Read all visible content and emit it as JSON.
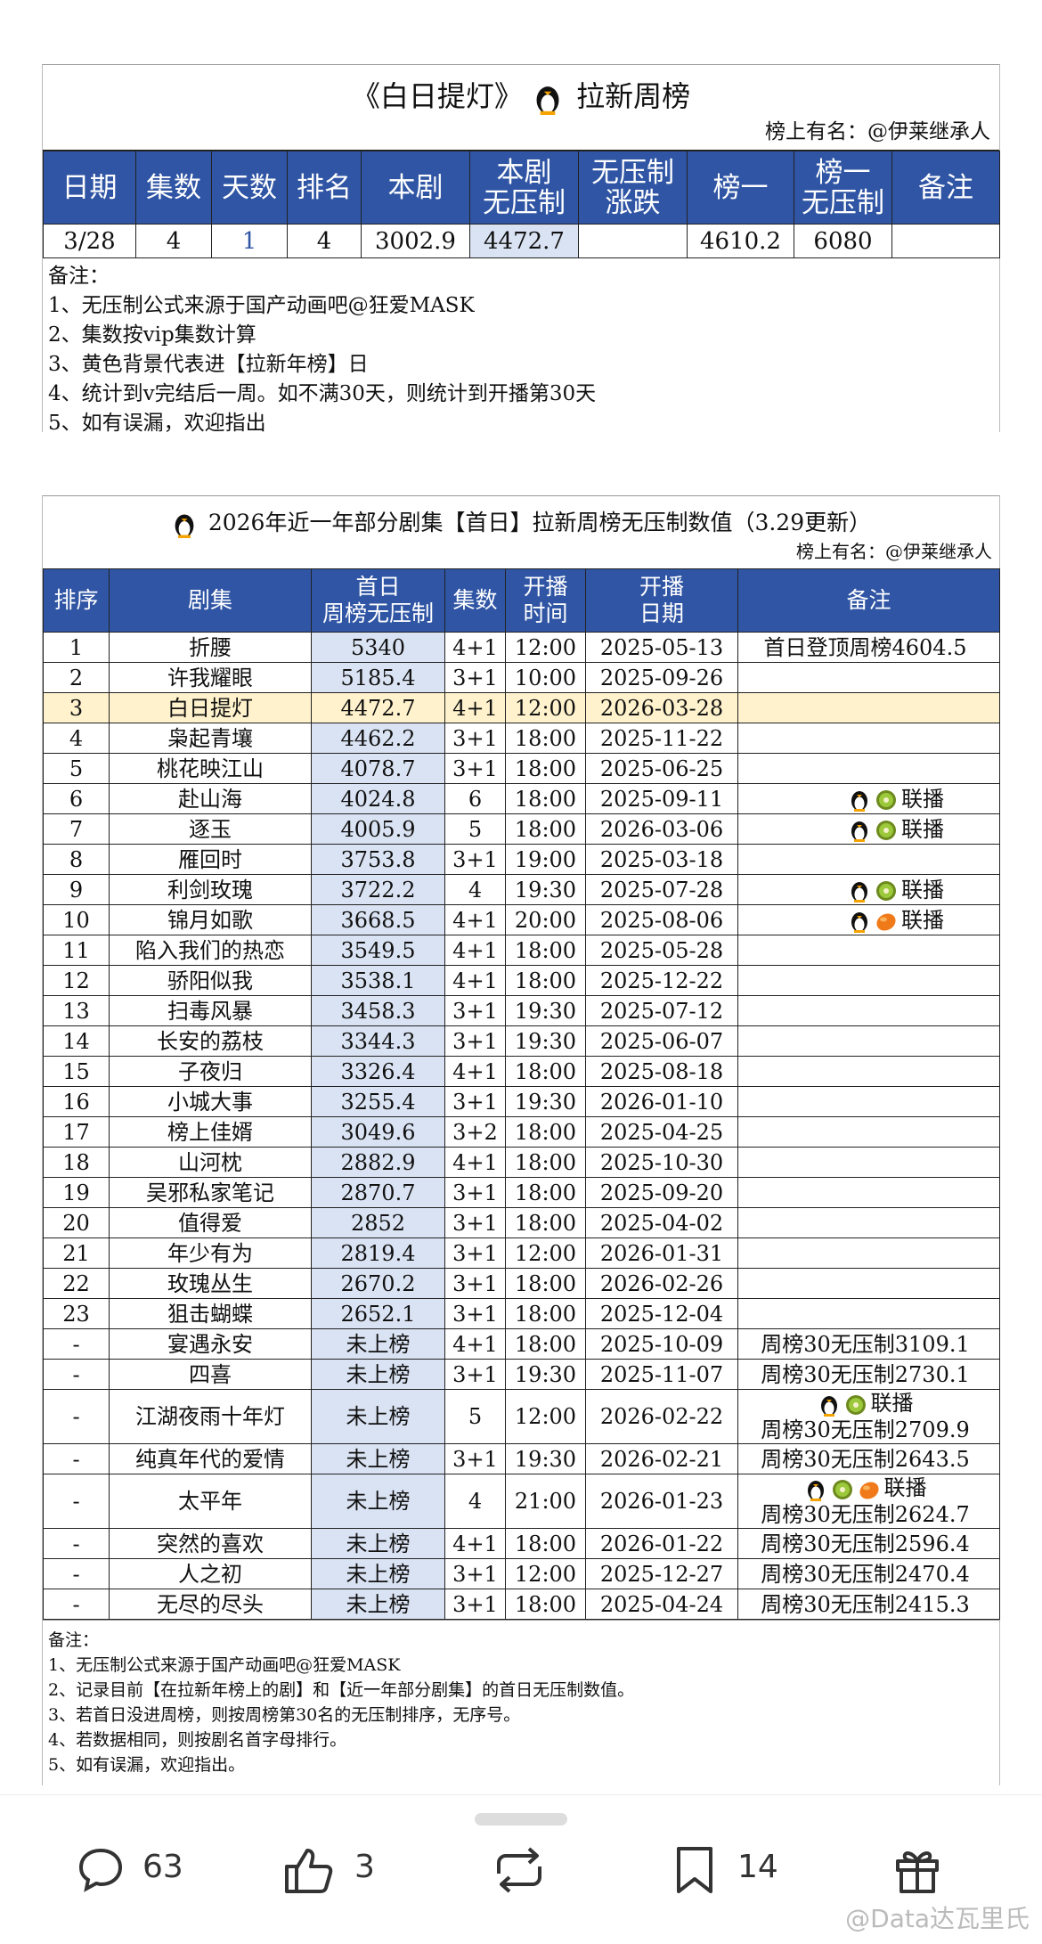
{
  "table1": {
    "title": "《白日提灯》",
    "title_suffix": "拉新周榜",
    "credit": "榜上有名：@伊莱继承人",
    "headers": [
      "日期",
      "集数",
      "天数",
      "排名",
      "本剧",
      "本剧\n无压制",
      "无压制\n涨跌",
      "榜一",
      "榜一\n无压制",
      "备注"
    ],
    "rows": [
      [
        "3/28",
        4,
        1,
        4,
        3002.9,
        4472.7,
        null,
        4610.2,
        6080,
        null
      ]
    ],
    "notes_title": "备注：",
    "notes": [
      "1、无压制公式来源于国产动画吧@狂爱MASK",
      "2、集数按vip集数计算",
      "3、黄色背景代表进【拉新年榜】日",
      "4、统计到v完结后一周。如不满30天，则统计到开播第30天",
      "5、如有误漏，欢迎指出"
    ]
  },
  "table2": {
    "title": "2026年近一年部分剧集【首日】拉新周榜无压制数值（3.29更新）",
    "credit": "榜上有名：@伊莱继承人",
    "headers": [
      "排序",
      "剧集",
      "首日\n周榜无压制",
      "集数",
      "开播\n时间",
      "开播\n日期",
      "备注"
    ],
    "rows": [
      [
        1,
        "折腰",
        5340,
        "4+1",
        "12:00",
        "2025-05-13",
        [
          "首日登顶周榜4604.5"
        ]
      ],
      [
        2,
        "许我耀眼",
        5185.4,
        "3+1",
        "10:00",
        "2025-09-26",
        null
      ],
      [
        3,
        "白日提灯",
        4472.7,
        "4+1",
        "12:00",
        "2026-03-28",
        null
      ],
      [
        4,
        "枭起青壤",
        4462.2,
        "3+1",
        "18:00",
        "2025-11-22",
        null
      ],
      [
        5,
        "桃花映江山",
        4078.7,
        "3+1",
        "18:00",
        "2025-06-25",
        null
      ],
      [
        6,
        "赴山海",
        4024.8,
        "6",
        "18:00",
        "2025-09-11",
        [
          "联播"
        ]
      ],
      [
        7,
        "逐玉",
        4005.9,
        "5",
        "18:00",
        "2026-03-06",
        [
          "联播"
        ]
      ],
      [
        8,
        "雁回时",
        3753.8,
        "3+1",
        "19:00",
        "2025-03-18",
        null
      ],
      [
        9,
        "利剑玫瑰",
        3722.2,
        "4",
        "19:30",
        "2025-07-28",
        [
          "联播"
        ]
      ],
      [
        10,
        "锦月如歌",
        3668.5,
        "4+1",
        "20:00",
        "2025-08-06",
        [
          "联播"
        ]
      ],
      [
        11,
        "陷入我们的热恋",
        3549.5,
        "4+1",
        "18:00",
        "2025-05-28",
        null
      ],
      [
        12,
        "骄阳似我",
        3538.1,
        "4+1",
        "18:00",
        "2025-12-22",
        null
      ],
      [
        13,
        "扫毒风暴",
        3458.3,
        "3+1",
        "19:30",
        "2025-07-12",
        null
      ],
      [
        14,
        "长安的荔枝",
        3344.3,
        "3+1",
        "19:30",
        "2025-06-07",
        null
      ],
      [
        15,
        "子夜归",
        3326.4,
        "4+1",
        "18:00",
        "2025-08-18",
        null
      ],
      [
        16,
        "小城大事",
        3255.4,
        "3+1",
        "19:30",
        "2026-01-10",
        null
      ],
      [
        17,
        "榜上佳婿",
        3049.6,
        "3+2",
        "18:00",
        "2025-04-25",
        null
      ],
      [
        18,
        "山河枕",
        2882.9,
        "4+1",
        "18:00",
        "2025-10-30",
        null
      ],
      [
        19,
        "吴邪私家笔记",
        2870.7,
        "3+1",
        "18:00",
        "2025-09-20",
        null
      ],
      [
        20,
        "值得爱",
        2852,
        "3+1",
        "18:00",
        "2025-04-02",
        null
      ],
      [
        21,
        "年少有为",
        2819.4,
        "3+1",
        "12:00",
        "2026-01-31",
        null
      ],
      [
        22,
        "玫瑰丛生",
        2670.2,
        "3+1",
        "18:00",
        "2026-02-26",
        null
      ],
      [
        23,
        "狙击蝴蝶",
        2652.1,
        "3+1",
        "18:00",
        "2025-12-04",
        null
      ],
      [
        "-",
        "宴遇永安",
        "未上榜",
        "4+1",
        "18:00",
        "2025-10-09",
        [
          "周榜30无压制3109.1"
        ]
      ],
      [
        "-",
        "四喜",
        "未上榜",
        "3+1",
        "19:30",
        "2025-11-07",
        [
          "周榜30无压制2730.1"
        ]
      ],
      [
        "-",
        "江湖夜雨十年灯",
        "未上榜",
        "5",
        "12:00",
        "2026-02-22",
        [
          "联播",
          "周榜30无压制2709.9"
        ]
      ],
      [
        "-",
        "纯真年代的爱情",
        "未上榜",
        "3+1",
        "19:30",
        "2026-02-21",
        [
          "周榜30无压制2643.5"
        ]
      ],
      [
        "-",
        "太平年",
        "未上榜",
        "4",
        "21:00",
        "2026-01-23",
        [
          "联播",
          "周榜30无压制2624.7"
        ]
      ],
      [
        "-",
        "突然的喜欢",
        "未上榜",
        "4+1",
        "18:00",
        "2026-01-22",
        [
          "周榜30无压制2596.4"
        ]
      ],
      [
        "-",
        "人之初",
        "未上榜",
        "3+1",
        "12:00",
        "2025-12-27",
        [
          "周榜30无压制2470.4"
        ]
      ],
      [
        "-",
        "无尽的尽头",
        "未上榜",
        "3+1",
        "18:00",
        "2025-04-24",
        [
          "周榜30无压制2415.3"
        ]
      ]
    ],
    "notes_title": "备注：",
    "notes": [
      "1、无压制公式来源于国产动画吧@狂爱MASK",
      "2、记录目前【在拉新年榜上的剧】和【近一年部分剧集】的首日无压制数值。",
      "3、若首日没进周榜，则按周榜第30名的无压制排序，无序号。",
      "4、若数据相同，则按剧名首字母排行。",
      "5、如有误漏，欢迎指出。"
    ]
  },
  "toolbar": {
    "comments": 63,
    "likes": 3,
    "favorites": 14,
    "watermark": "@Data达瓦里氏"
  }
}
